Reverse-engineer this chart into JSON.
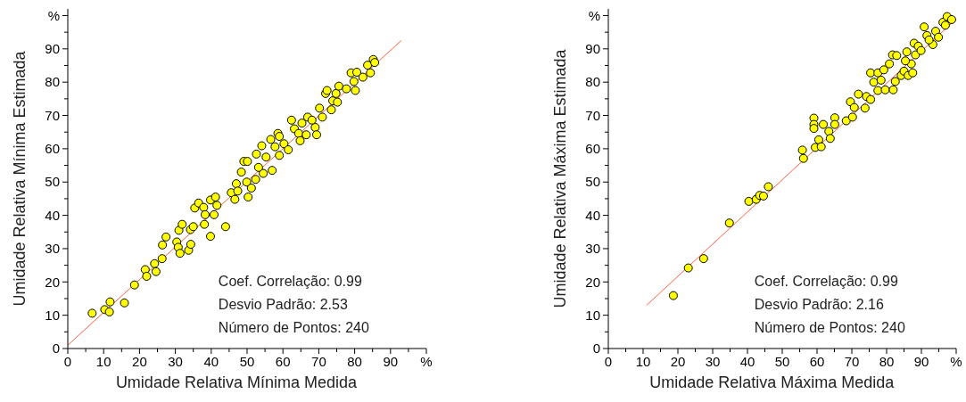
{
  "chart_data": [
    {
      "type": "scatter",
      "xlabel": "Umidade Relativa Mínima Medida",
      "ylabel": "Umidade Relativa Mínima Estimada",
      "xlim": [
        0,
        100
      ],
      "ylim": [
        0,
        102
      ],
      "xticks": [
        0,
        {
          "value": 5,
          "label": null
        },
        10,
        {
          "value": 15,
          "label": null
        },
        20,
        {
          "value": 25,
          "label": null
        },
        30,
        {
          "value": 35,
          "label": null
        },
        40,
        {
          "value": 45,
          "label": null
        },
        50,
        {
          "value": 55,
          "label": null
        },
        60,
        {
          "value": 65,
          "label": null
        },
        70,
        {
          "value": 75,
          "label": null
        },
        80,
        {
          "value": 85,
          "label": null
        },
        90,
        {
          "value": 95,
          "label": null
        },
        {
          "value": 100,
          "label": "%"
        }
      ],
      "yticks": [
        0,
        {
          "value": 5,
          "label": null
        },
        10,
        {
          "value": 15,
          "label": null
        },
        20,
        {
          "value": 25,
          "label": null
        },
        30,
        {
          "value": 35,
          "label": null
        },
        40,
        {
          "value": 45,
          "label": null
        },
        50,
        {
          "value": 55,
          "label": null
        },
        60,
        {
          "value": 65,
          "label": null
        },
        70,
        {
          "value": 75,
          "label": null
        },
        80,
        {
          "value": 85,
          "label": null
        },
        90,
        {
          "value": 95,
          "label": null
        },
        {
          "value": 100,
          "label": "%"
        }
      ],
      "grid": false,
      "annotations": [
        "Coef. Correlação: 0.99",
        "Desvio Padrão: 2.53",
        "Número de Pontos: 240"
      ],
      "series": [
        {
          "type": "line",
          "color": "#ff6040",
          "x": [
            0,
            93
          ],
          "values": [
            1,
            92.5
          ]
        },
        {
          "marker": "circle",
          "color": "#ffff00",
          "x": [
            6.8,
            10.3,
            11.8,
            11.6,
            15.8,
            18.6,
            21.6,
            22,
            24.2,
            24.6,
            26.3,
            26.4,
            27.4,
            30.4,
            31,
            31.9,
            30.8,
            31.3,
            33.7,
            34.3,
            34.2,
            35,
            35.4,
            36.5,
            37.9,
            38.3,
            38.1,
            39.8,
            39.8,
            41.2,
            40.8,
            44,
            41.6,
            45.6,
            46.6,
            47,
            48.4,
            49.1,
            50.1,
            50.3,
            49.9,
            51.2,
            52.4,
            52.6,
            54.1,
            54.5,
            55.3,
            56.6,
            57,
            57.8,
            58.6,
            59,
            60.3,
            61.5,
            62.4,
            63.2,
            64.4,
            64.8,
            65.3,
            66.9,
            66.5,
            69,
            69.4,
            70.2,
            71,
            71.9,
            72.3,
            73.5,
            73.9,
            75.2,
            74.8,
            75.6,
            77.7,
            79,
            80.2,
            79.8,
            80.6,
            82.3,
            83.6,
            84.4,
            85.2,
            85.6,
            47.4,
            53.2,
            59,
            68.1
          ],
          "values": [
            10.6,
            11.7,
            14,
            11,
            13.7,
            19.1,
            23.7,
            21.7,
            25.5,
            23.1,
            27,
            31.1,
            33.5,
            32,
            35.5,
            37.3,
            30.4,
            28.6,
            29.5,
            31.3,
            35.7,
            36.6,
            42.2,
            43.7,
            42.4,
            40.2,
            37.3,
            33.7,
            44.6,
            45.5,
            40.2,
            36.6,
            43,
            46.8,
            44.8,
            49.5,
            53,
            56.2,
            56.2,
            45.5,
            50,
            48.2,
            50.8,
            58.4,
            60.9,
            52.6,
            57.5,
            62.8,
            53.5,
            60.6,
            64.6,
            58,
            61.5,
            59.7,
            68.6,
            66,
            64.6,
            62.4,
            67.7,
            69.5,
            64.2,
            66.4,
            64.2,
            72.2,
            69.5,
            76.6,
            77.5,
            71.7,
            74.4,
            74,
            76.6,
            78.8,
            78,
            82.8,
            77.5,
            80.2,
            83,
            81.5,
            85.1,
            82.8,
            86.8,
            85.9,
            47.3,
            54.4,
            63.7,
            68.6
          ]
        }
      ]
    },
    {
      "type": "scatter",
      "xlabel": "Umidade Relativa Máxima Medida",
      "ylabel": "Umidade Relativa Máxima Estimada",
      "xlim": [
        0,
        100
      ],
      "ylim": [
        0,
        102
      ],
      "xticks": [
        0,
        {
          "value": 5,
          "label": null
        },
        10,
        {
          "value": 15,
          "label": null
        },
        20,
        {
          "value": 25,
          "label": null
        },
        30,
        {
          "value": 35,
          "label": null
        },
        40,
        {
          "value": 45,
          "label": null
        },
        50,
        {
          "value": 55,
          "label": null
        },
        60,
        {
          "value": 65,
          "label": null
        },
        70,
        {
          "value": 75,
          "label": null
        },
        80,
        {
          "value": 85,
          "label": null
        },
        90,
        {
          "value": 95,
          "label": null
        },
        {
          "value": 100,
          "label": "%"
        }
      ],
      "yticks": [
        0,
        {
          "value": 5,
          "label": null
        },
        10,
        {
          "value": 15,
          "label": null
        },
        20,
        {
          "value": 25,
          "label": null
        },
        30,
        {
          "value": 35,
          "label": null
        },
        40,
        {
          "value": 45,
          "label": null
        },
        50,
        {
          "value": 55,
          "label": null
        },
        60,
        {
          "value": 65,
          "label": null
        },
        70,
        {
          "value": 75,
          "label": null
        },
        80,
        {
          "value": 85,
          "label": null
        },
        90,
        {
          "value": 95,
          "label": null
        },
        {
          "value": 100,
          "label": "%"
        }
      ],
      "grid": false,
      "annotations": [
        "Coef. Correlação: 0.99",
        "Desvio Padrão: 2.16",
        "Número de Pontos: 240"
      ],
      "series": [
        {
          "type": "line",
          "color": "#ff6040",
          "x": [
            11,
            100
          ],
          "values": [
            13,
            99
          ]
        },
        {
          "marker": "circle",
          "color": "#ffff00",
          "x": [
            18.7,
            23,
            27.4,
            34.8,
            40.4,
            42.5,
            43.5,
            44.6,
            46,
            55.8,
            56.1,
            59.1,
            59.1,
            59.1,
            59.5,
            60.5,
            61.2,
            61.8,
            63.4,
            63.8,
            65.1,
            65.1,
            68.4,
            70.2,
            69.6,
            70.7,
            71.9,
            73.8,
            74.2,
            75.4,
            75.4,
            76.3,
            77.5,
            77.5,
            79.2,
            79.6,
            80.8,
            81.7,
            81.9,
            82.5,
            82.9,
            84.2,
            85,
            85.8,
            86.2,
            87.1,
            87.5,
            87.9,
            88.3,
            89.1,
            89.9,
            90.8,
            91.6,
            93.3,
            94.1,
            94.9,
            96.2,
            97.4,
            98.7,
            96.9,
            92.2,
            85.4,
            78.4
          ],
          "values": [
            15.9,
            24.2,
            27,
            37.7,
            44.2,
            44.8,
            46,
            45.8,
            48.6,
            59.6,
            57.1,
            69.2,
            67.3,
            66.1,
            60.4,
            62.7,
            60.6,
            67.3,
            65.2,
            63.1,
            69.3,
            67.3,
            68.4,
            69.5,
            74.1,
            72.4,
            76.4,
            72.2,
            75.7,
            74.8,
            82.8,
            80,
            77.5,
            82.8,
            83.7,
            77.7,
            85.5,
            88.2,
            77.7,
            80.2,
            88,
            82,
            83.3,
            89.1,
            82,
            85.5,
            82.8,
            91.7,
            88.2,
            90.8,
            89.5,
            96.6,
            94,
            91.3,
            95.3,
            93.5,
            98,
            99.7,
            98.8,
            97.1,
            92.7,
            86.4,
            80.6
          ]
        }
      ]
    }
  ]
}
